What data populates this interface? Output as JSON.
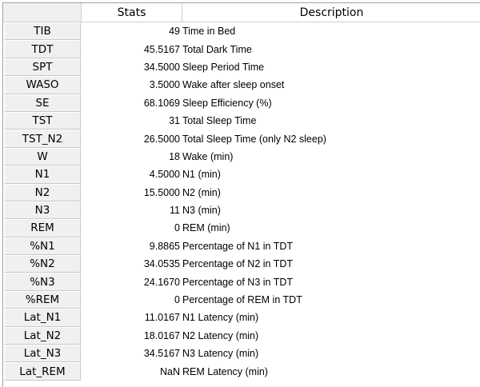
{
  "table": {
    "columns": [
      "Stats",
      "Description"
    ],
    "rows": [
      {
        "label": "TIB",
        "stat": "49",
        "desc": "Time in Bed"
      },
      {
        "label": "TDT",
        "stat": "45.5167",
        "desc": "Total Dark Time"
      },
      {
        "label": "SPT",
        "stat": "34.5000",
        "desc": "Sleep Period Time"
      },
      {
        "label": "WASO",
        "stat": "3.5000",
        "desc": "Wake after sleep onset"
      },
      {
        "label": "SE",
        "stat": "68.1069",
        "desc": "Sleep Efficiency (%)"
      },
      {
        "label": "TST",
        "stat": "31",
        "desc": "Total Sleep Time"
      },
      {
        "label": "TST_N2",
        "stat": "26.5000",
        "desc": "Total Sleep Time (only N2 sleep)"
      },
      {
        "label": "W",
        "stat": "18",
        "desc": "Wake (min)"
      },
      {
        "label": "N1",
        "stat": "4.5000",
        "desc": "N1 (min)"
      },
      {
        "label": "N2",
        "stat": "15.5000",
        "desc": "N2 (min)"
      },
      {
        "label": "N3",
        "stat": "11",
        "desc": "N3 (min)"
      },
      {
        "label": "REM",
        "stat": "0",
        "desc": "REM (min)"
      },
      {
        "label": "%N1",
        "stat": "9.8865",
        "desc": "Percentage of N1 in TDT"
      },
      {
        "label": "%N2",
        "stat": "34.0535",
        "desc": "Percentage of N2 in TDT"
      },
      {
        "label": "%N3",
        "stat": "24.1670",
        "desc": "Percentage of N3 in TDT"
      },
      {
        "label": "%REM",
        "stat": "0",
        "desc": "Percentage of REM in TDT"
      },
      {
        "label": "Lat_N1",
        "stat": "11.0167",
        "desc": "N1 Latency (min)"
      },
      {
        "label": "Lat_N2",
        "stat": "18.0167",
        "desc": "N2 Latency (min)"
      },
      {
        "label": "Lat_N3",
        "stat": "34.5167",
        "desc": "N3 Latency (min)"
      },
      {
        "label": "Lat_REM",
        "stat": "NaN",
        "desc": "REM Latency (min)"
      }
    ]
  }
}
